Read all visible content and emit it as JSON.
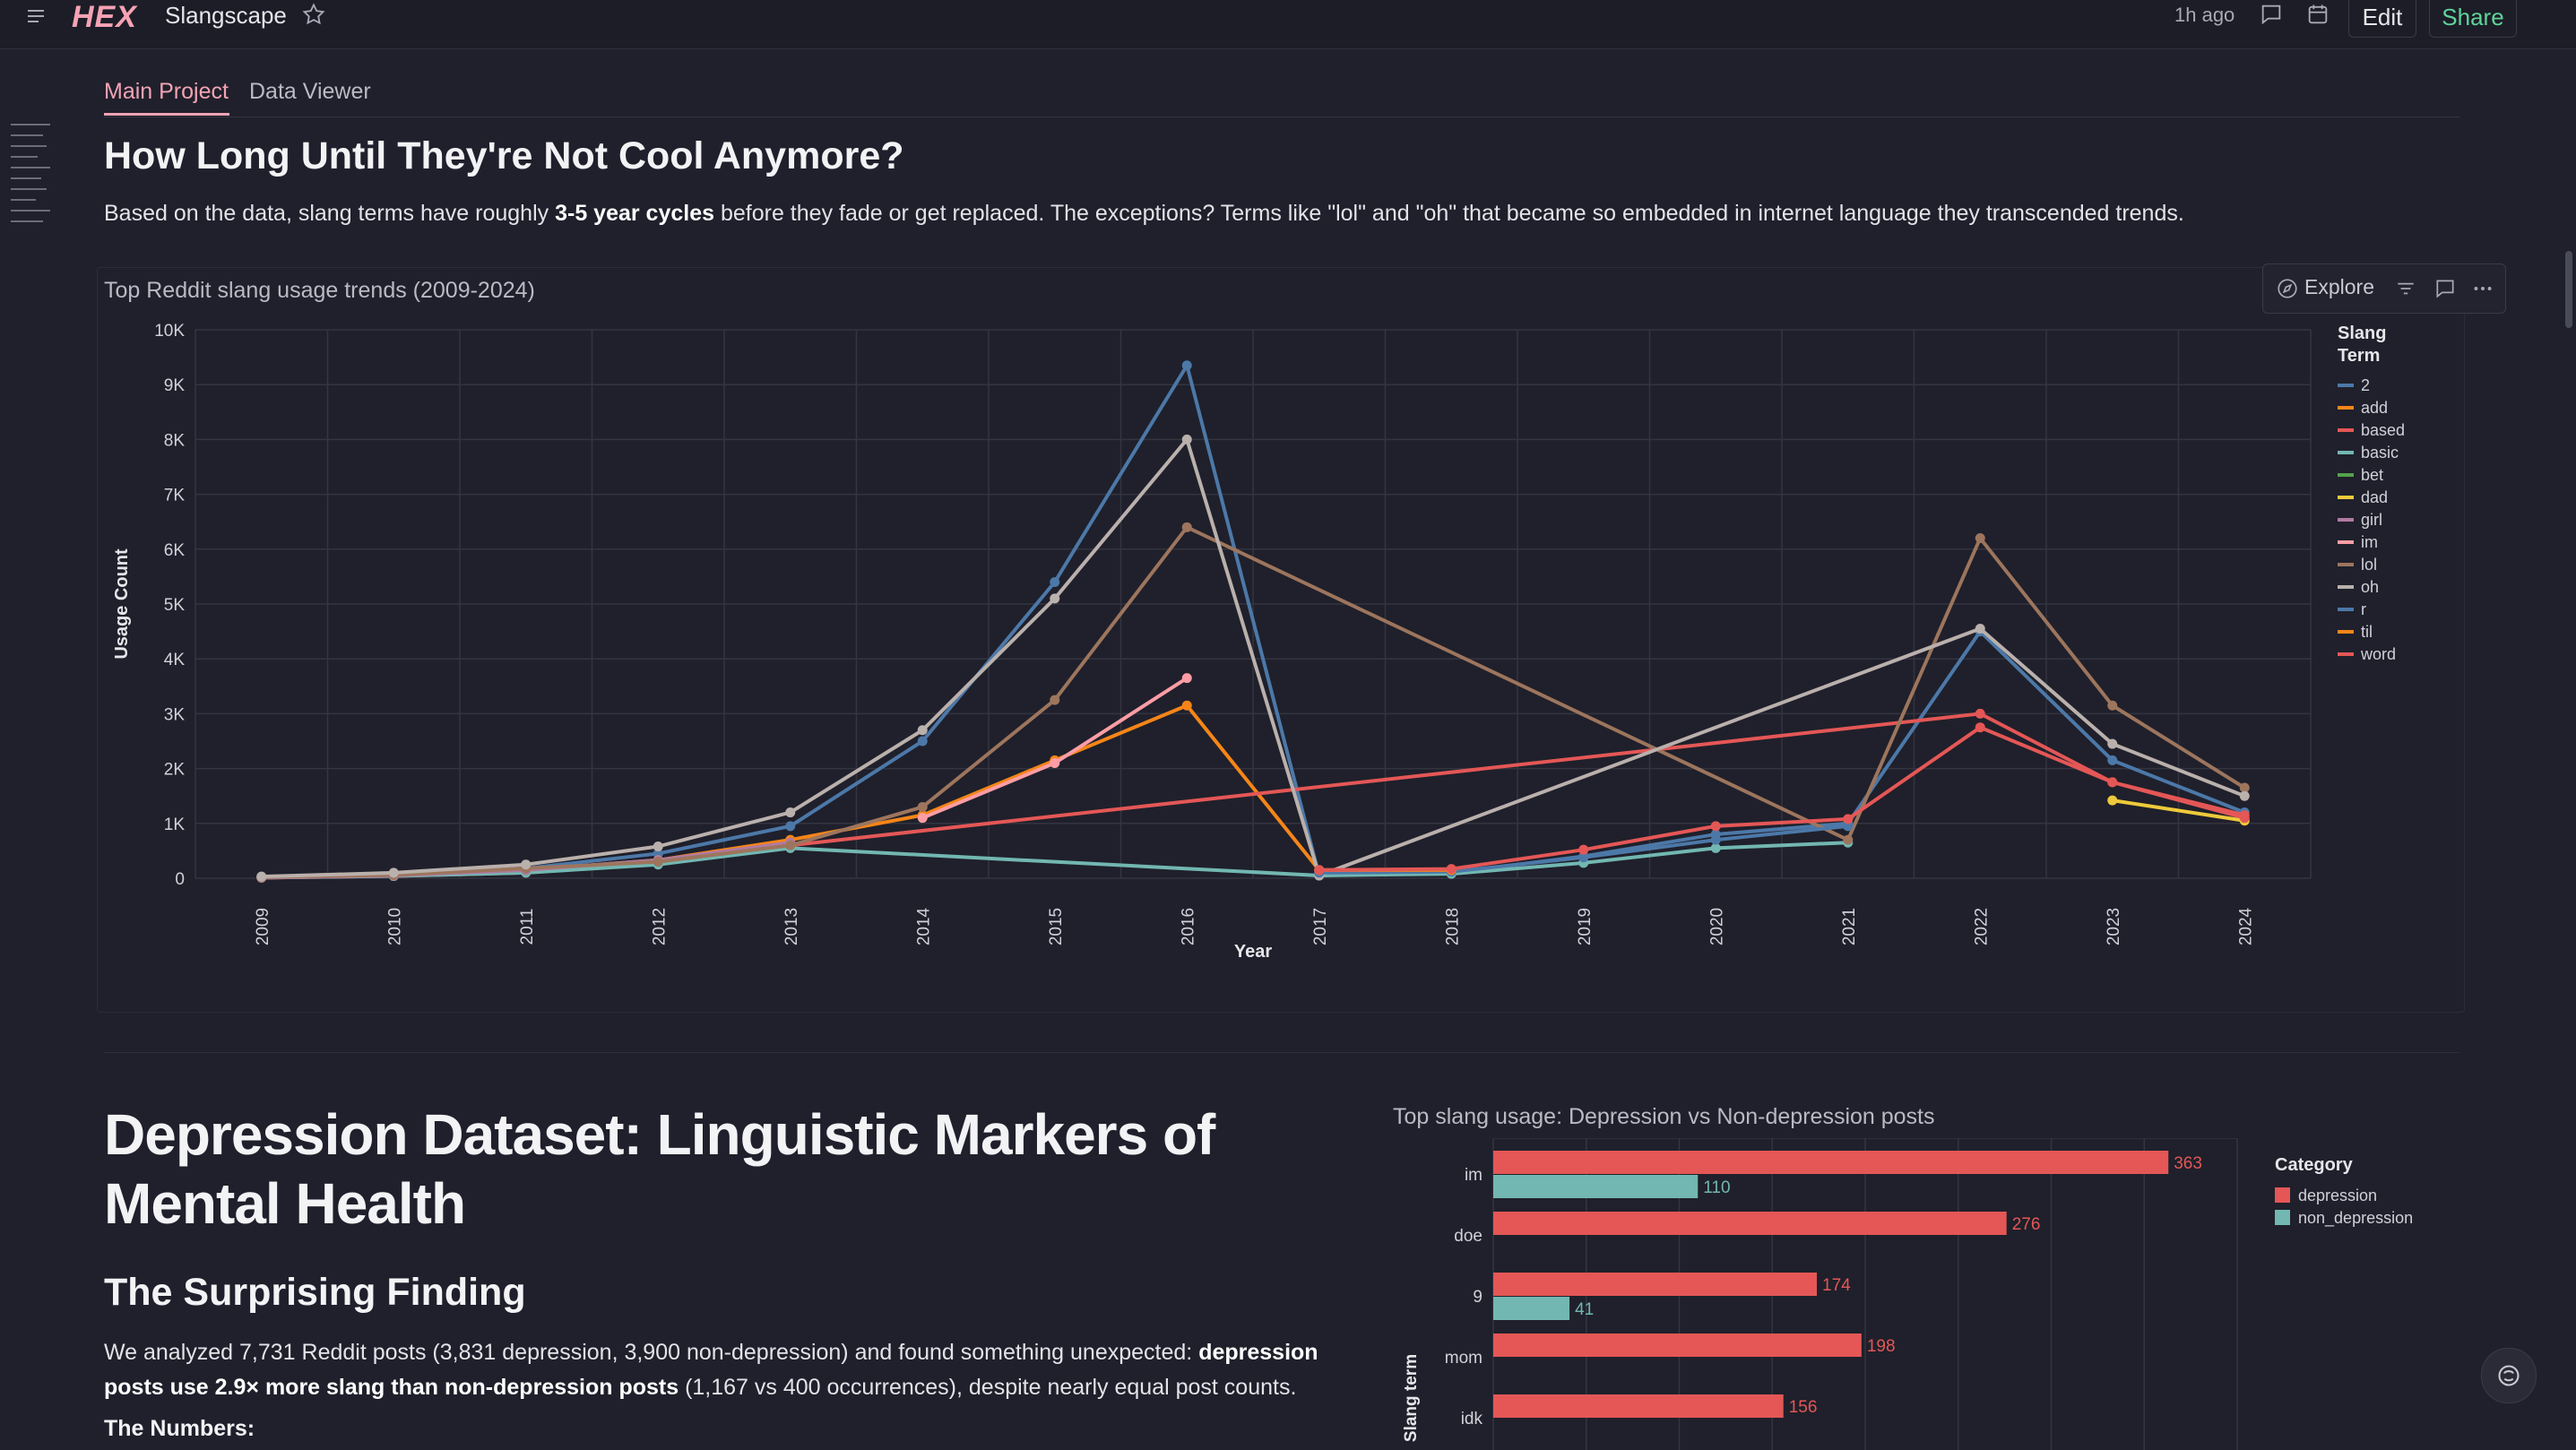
{
  "topbar": {
    "logo": "HEX",
    "app_title": "Slangscape",
    "updated": "1h ago",
    "edit_label": "Edit",
    "share_label": "Share"
  },
  "tabs": [
    {
      "label": "Main Project",
      "active": true
    },
    {
      "label": "Data Viewer",
      "active": false
    }
  ],
  "section1": {
    "heading": "How Long Until They're Not Cool Anymore?",
    "para_before": "Based on the data, slang terms have roughly ",
    "para_bold": "3-5 year cycles",
    "para_after": " before they fade or get replaced. The exceptions? Terms like \"lol\" and \"oh\" that became so embedded in internet language they transcended trends.",
    "chart_title": "Top Reddit slang usage trends (2009-2024)",
    "explore_label": "Explore"
  },
  "section2": {
    "heading": "Depression Dataset: Linguistic Markers of Mental Health",
    "subheading": "The Surprising Finding",
    "p_1": "We analyzed 7,731 Reddit posts (3,831 depression, 3,900 non-depression) and found something unexpected: ",
    "p_bold": "depression posts use 2.9× more slang than non-depression posts",
    "p_2": " (1,167 vs 400 occurrences), despite nearly equal post counts.",
    "numbers_label": "The Numbers:",
    "bar_chart_title": "Top slang usage: Depression vs Non-depression posts"
  },
  "chart_data": [
    {
      "type": "line",
      "title": "Top Reddit slang usage trends (2009-2024)",
      "xlabel": "Year",
      "ylabel": "Usage Count",
      "ylim": [
        0,
        10000
      ],
      "yticks": [
        "0",
        "1K",
        "2K",
        "3K",
        "4K",
        "5K",
        "6K",
        "7K",
        "8K",
        "9K",
        "10K"
      ],
      "x": [
        "2009",
        "2010",
        "2011",
        "2012",
        "2013",
        "2014",
        "2015",
        "2016",
        "2017",
        "2018",
        "2019",
        "2020",
        "2021",
        "2022",
        "2023",
        "2024"
      ],
      "legend_title": "Slang Term",
      "legend_position": "right",
      "series": [
        {
          "name": "2",
          "color": "#4c78a8",
          "points": [
            [
              "2009",
              20
            ],
            [
              "2010",
              60
            ],
            [
              "2011",
              180
            ],
            [
              "2012",
              450
            ],
            [
              "2013",
              950
            ],
            [
              "2014",
              2500
            ],
            [
              "2015",
              5400
            ],
            [
              "2016",
              9350
            ],
            [
              "2017",
              50
            ],
            [
              "2018",
              100
            ],
            [
              "2019",
              400
            ],
            [
              "2020",
              800
            ],
            [
              "2021",
              1000
            ],
            [
              "2022",
              4500
            ],
            [
              "2023",
              2150
            ],
            [
              "2024",
              1200
            ]
          ]
        },
        {
          "name": "add",
          "color": "#f58518",
          "points": [
            [
              "2009",
              10
            ],
            [
              "2010",
              50
            ],
            [
              "2011",
              150
            ],
            [
              "2012",
              330
            ],
            [
              "2013",
              700
            ],
            [
              "2014",
              1150
            ],
            [
              "2015",
              2150
            ],
            [
              "2016",
              3150
            ],
            [
              "2017",
              150
            ],
            [
              "2018",
              150
            ]
          ]
        },
        {
          "name": "based",
          "color": "#e45756",
          "points": [
            [
              "2009",
              10
            ],
            [
              "2010",
              40
            ],
            [
              "2011",
              100
            ],
            [
              "2012",
              280
            ],
            [
              "2013",
              600
            ],
            [
              "2022",
              3000
            ],
            [
              "2023",
              1750
            ],
            [
              "2024",
              1150
            ]
          ]
        },
        {
          "name": "basic",
          "color": "#72b7b2",
          "points": [
            [
              "2009",
              10
            ],
            [
              "2010",
              40
            ],
            [
              "2011",
              100
            ],
            [
              "2012",
              250
            ],
            [
              "2013",
              550
            ],
            [
              "2017",
              50
            ],
            [
              "2018",
              80
            ],
            [
              "2019",
              280
            ],
            [
              "2020",
              550
            ],
            [
              "2021",
              650
            ]
          ]
        },
        {
          "name": "bet",
          "color": "#54a24b",
          "points": [
            [
              "2009",
              30
            ],
            [
              "2010",
              70
            ],
            [
              "2011",
              150
            ]
          ]
        },
        {
          "name": "dad",
          "color": "#eeca3b",
          "points": [
            [
              "2023",
              1420
            ],
            [
              "2024",
              1050
            ]
          ]
        },
        {
          "name": "girl",
          "color": "#b279a2",
          "points": [
            [
              "2009",
              10
            ],
            [
              "2010",
              50
            ],
            [
              "2011",
              150
            ],
            [
              "2012",
              330
            ],
            [
              "2013",
              650
            ]
          ]
        },
        {
          "name": "im",
          "color": "#ff9da6",
          "points": [
            [
              "2014",
              1100
            ],
            [
              "2015",
              2100
            ],
            [
              "2016",
              3650
            ]
          ]
        },
        {
          "name": "lol",
          "color": "#9d755d",
          "points": [
            [
              "2009",
              20
            ],
            [
              "2010",
              60
            ],
            [
              "2011",
              180
            ],
            [
              "2012",
              300
            ],
            [
              "2013",
              600
            ],
            [
              "2014",
              1300
            ],
            [
              "2015",
              3250
            ],
            [
              "2016",
              6400
            ],
            [
              "2021",
              700
            ],
            [
              "2022",
              6200
            ],
            [
              "2023",
              3150
            ],
            [
              "2024",
              1650
            ]
          ]
        },
        {
          "name": "oh",
          "color": "#bab0ac",
          "points": [
            [
              "2009",
              30
            ],
            [
              "2010",
              100
            ],
            [
              "2011",
              250
            ],
            [
              "2012",
              580
            ],
            [
              "2013",
              1200
            ],
            [
              "2014",
              2700
            ],
            [
              "2015",
              5100
            ],
            [
              "2016",
              8000
            ],
            [
              "2017",
              50
            ],
            [
              "2022",
              4550
            ],
            [
              "2023",
              2450
            ],
            [
              "2024",
              1500
            ]
          ]
        },
        {
          "name": "r",
          "color": "#4c78a8",
          "points": [
            [
              "2017",
              100
            ],
            [
              "2018",
              120
            ],
            [
              "2019",
              380
            ],
            [
              "2020",
              700
            ],
            [
              "2021",
              950
            ]
          ]
        },
        {
          "name": "til",
          "color": "#f58518",
          "points": [
            [
              "2017",
              150
            ],
            [
              "2018",
              150
            ]
          ]
        },
        {
          "name": "word",
          "color": "#e45756",
          "points": [
            [
              "2017",
              150
            ],
            [
              "2018",
              170
            ],
            [
              "2019",
              520
            ],
            [
              "2020",
              950
            ],
            [
              "2021",
              1080
            ],
            [
              "2022",
              2750
            ],
            [
              "2023",
              1750
            ],
            [
              "2024",
              1100
            ]
          ]
        }
      ]
    },
    {
      "type": "bar",
      "orientation": "horizontal",
      "title": "Top slang usage: Depression vs Non-depression posts",
      "ylabel": "Slang term",
      "xlim": [
        0,
        400
      ],
      "categories": [
        "im",
        "doe",
        "9",
        "mom",
        "idk"
      ],
      "legend_title": "Category",
      "legend_position": "right",
      "series": [
        {
          "name": "depression",
          "color": "#e45756",
          "values": [
            363,
            276,
            174,
            198,
            156
          ]
        },
        {
          "name": "non_depression",
          "color": "#72b7b2",
          "values": [
            110,
            null,
            41,
            null,
            null
          ]
        }
      ]
    }
  ]
}
